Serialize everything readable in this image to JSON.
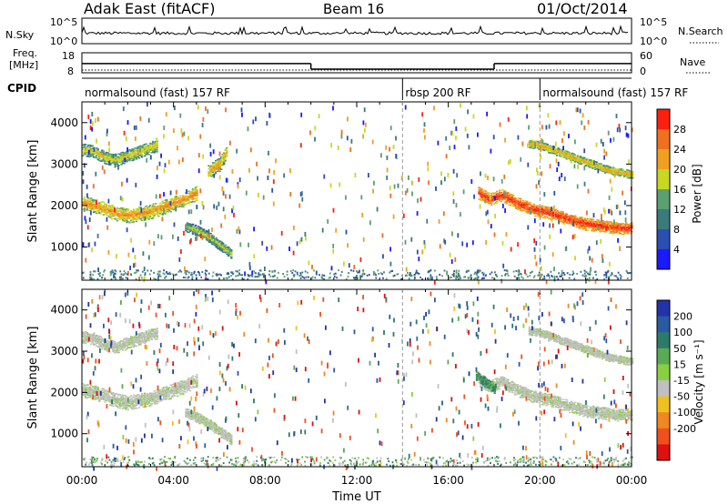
{
  "header": {
    "title": "Adak East (fitACF)",
    "beam": "Beam 16",
    "date": "01/Oct/2014"
  },
  "strip_labels": {
    "nsky": "N.Sky",
    "nsearch": "N.Search",
    "freq_line1": "Freq.",
    "freq_line2": "[MHz]",
    "nave": "Nave",
    "cpid": "CPID"
  },
  "noise_panel": {
    "left_ticks": [
      "10^5",
      "10^0"
    ],
    "right_ticks": [
      "10^5",
      "10^0"
    ]
  },
  "freq_panel": {
    "left_ticks": [
      "18",
      "8"
    ],
    "right_ticks": [
      "60",
      "0"
    ],
    "freq_steps": [
      {
        "t_start": 0,
        "t_end": 10.0,
        "mhz": 12.6
      },
      {
        "t_start": 10.0,
        "t_end": 18.0,
        "mhz": 9.8
      },
      {
        "t_start": 18.0,
        "t_end": 24,
        "mhz": 12.6
      }
    ]
  },
  "cpid_segments": [
    {
      "label": "normalsound (fast) 157 RF",
      "t_start": 0,
      "t_end": 14.0
    },
    {
      "label": "rbsp 200 RF",
      "t_start": 14.0,
      "t_end": 20.0
    },
    {
      "label": "normalsound (fast) 157 RF",
      "t_start": 20.0,
      "t_end": 24
    }
  ],
  "time_ticks": [
    "00:00",
    "04:00",
    "08:00",
    "12:00",
    "16:00",
    "20:00",
    "00:00"
  ],
  "xlabel": "Time UT",
  "range_ticks": [
    "1000",
    "2000",
    "3000",
    "4000"
  ],
  "ylabel": "Slant Range [km]",
  "power_colorbar": {
    "label": "Power [dB]",
    "ticks": [
      "4",
      "8",
      "12",
      "16",
      "20",
      "24",
      "28"
    ],
    "colors": [
      "#1a1aff",
      "#2a4fb0",
      "#3a7a7a",
      "#5aa070",
      "#c8d820",
      "#f0a020",
      "#f07020",
      "#ff2010"
    ]
  },
  "velocity_colorbar": {
    "label": "Velocity [m s⁻¹]",
    "ticks": [
      "200",
      "100",
      "50",
      "15",
      "-15",
      "-50",
      "-100",
      "-200"
    ],
    "colors": [
      "#2233aa",
      "#2a5aa0",
      "#2e7a6a",
      "#5aaa55",
      "#88d040",
      "#c0c0c0",
      "#f0c020",
      "#f08820",
      "#f05020",
      "#e01010"
    ]
  },
  "chart_data": [
    {
      "type": "heatmap",
      "title": "Power",
      "xlabel": "Time UT",
      "ylabel": "Slant Range [km]",
      "xlim": [
        0,
        24
      ],
      "ylim": [
        200,
        4500
      ],
      "colorbar": "Power [dB]",
      "bands": [
        {
          "t": [
            0.0,
            0.5,
            1.0,
            1.5,
            2.0,
            2.5,
            3.0,
            3.5,
            4.0,
            4.5,
            5.0
          ],
          "range": [
            2050,
            2000,
            1900,
            1800,
            1750,
            1800,
            1850,
            1950,
            2050,
            2150,
            2300
          ],
          "width": 350,
          "db": 18
        },
        {
          "t": [
            0.0,
            0.5,
            1.0,
            1.5,
            2.0,
            2.5,
            3.0,
            3.3
          ],
          "range": [
            3350,
            3300,
            3150,
            3100,
            3200,
            3300,
            3400,
            3450
          ],
          "width": 300,
          "db": 14
        },
        {
          "t": [
            4.5,
            5.0,
            5.5,
            6.0,
            6.5
          ],
          "range": [
            1500,
            1400,
            1250,
            1050,
            850
          ],
          "width": 250,
          "db": 12
        },
        {
          "t": [
            5.5,
            6.0,
            6.3
          ],
          "range": [
            2800,
            3000,
            3300
          ],
          "width": 350,
          "db": 16
        },
        {
          "t": [
            17.3,
            17.8,
            18.3,
            19.0,
            19.7,
            20.5,
            21.3,
            22.0,
            22.7,
            23.3,
            24.0
          ],
          "range": [
            2300,
            2150,
            2250,
            2050,
            1900,
            1800,
            1650,
            1550,
            1500,
            1450,
            1450
          ],
          "width": 300,
          "db": 24
        },
        {
          "t": [
            19.5,
            20.0,
            20.5,
            21.0,
            21.5,
            22.0,
            22.5,
            23.0,
            23.5,
            24.0
          ],
          "range": [
            3500,
            3450,
            3350,
            3250,
            3150,
            3050,
            2950,
            2850,
            2800,
            2750
          ],
          "width": 200,
          "db": 16
        }
      ]
    },
    {
      "type": "heatmap",
      "title": "Velocity",
      "xlabel": "Time UT",
      "ylabel": "Slant Range [km]",
      "xlim": [
        0,
        24
      ],
      "ylim": [
        200,
        4500
      ],
      "colorbar": "Velocity [m s⁻¹]",
      "bands": [
        {
          "t": [
            0.0,
            0.5,
            1.0,
            1.5,
            2.0,
            2.5,
            3.0,
            3.5,
            4.0,
            4.5,
            5.0
          ],
          "range": [
            2050,
            2000,
            1900,
            1800,
            1750,
            1800,
            1850,
            1950,
            2050,
            2150,
            2300
          ],
          "width": 350,
          "vel": 0
        },
        {
          "t": [
            0.0,
            0.5,
            1.0,
            1.5,
            2.0,
            2.5,
            3.0,
            3.3
          ],
          "range": [
            3350,
            3300,
            3150,
            3100,
            3200,
            3300,
            3400,
            3450
          ],
          "width": 300,
          "vel": 0
        },
        {
          "t": [
            4.5,
            5.0,
            5.5,
            6.0,
            6.5
          ],
          "range": [
            1500,
            1400,
            1250,
            1050,
            850
          ],
          "width": 250,
          "vel": 0
        },
        {
          "t": [
            17.3,
            17.8,
            18.3,
            19.0,
            19.7,
            20.5,
            21.3,
            22.0,
            22.7,
            23.3,
            24.0
          ],
          "range": [
            2300,
            2150,
            2250,
            2050,
            1900,
            1800,
            1650,
            1550,
            1500,
            1450,
            1450
          ],
          "width": 300,
          "vel": 0
        },
        {
          "t": [
            17.2,
            17.6,
            18.0
          ],
          "range": [
            2400,
            2250,
            2100
          ],
          "width": 250,
          "vel": 30
        },
        {
          "t": [
            19.5,
            20.0,
            20.5,
            21.0,
            21.5,
            22.0,
            22.5,
            23.0,
            23.5,
            24.0
          ],
          "range": [
            3500,
            3450,
            3350,
            3250,
            3150,
            3050,
            2950,
            2850,
            2800,
            2750
          ],
          "width": 200,
          "vel": 0
        }
      ]
    }
  ]
}
